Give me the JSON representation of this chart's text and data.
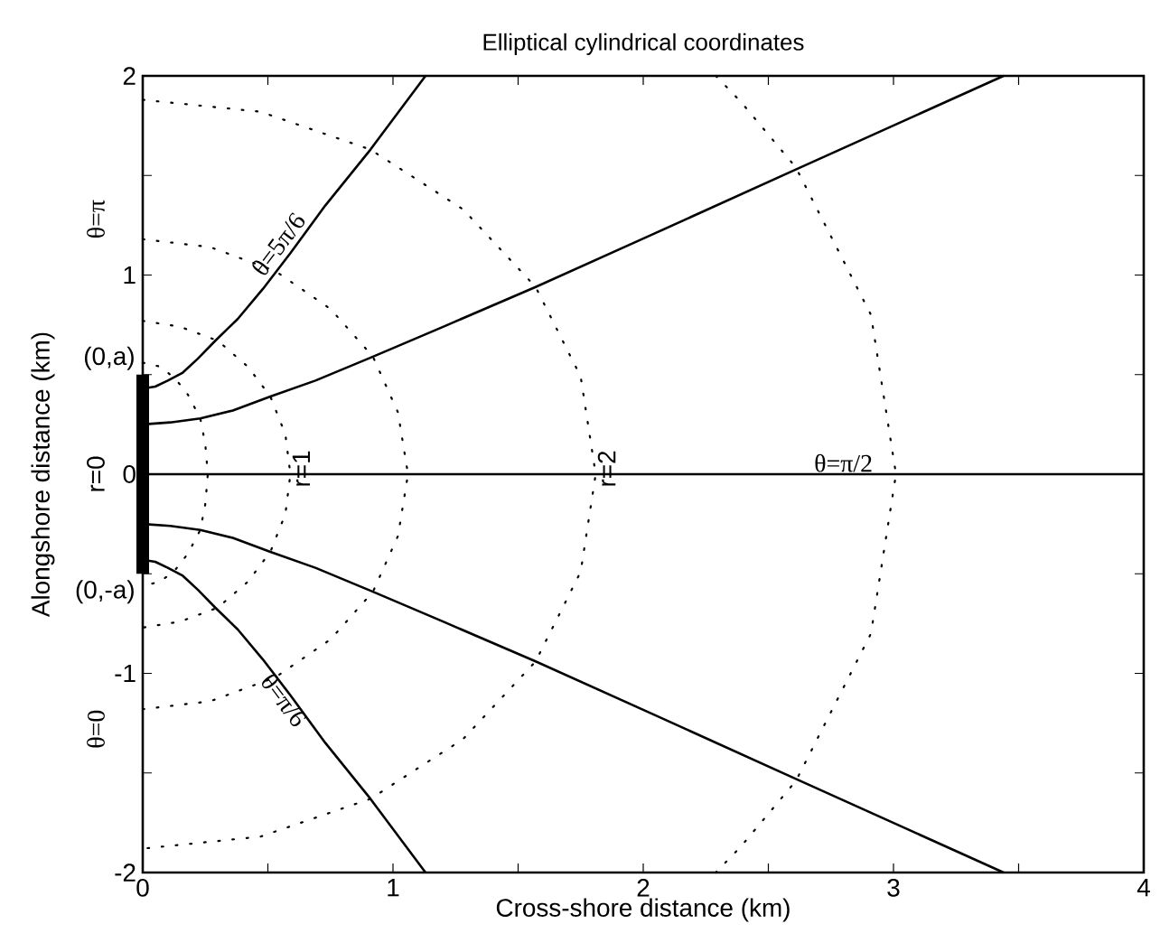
{
  "chart_data": {
    "type": "line",
    "title": "Elliptical cylindrical coordinates",
    "xlabel": "Cross-shore distance (km)",
    "ylabel": "Alongshore distance (km)",
    "xlim": [
      0,
      4
    ],
    "ylim": [
      -2,
      2
    ],
    "xticks": [
      0,
      {
        "value": 0.5,
        "label": null
      },
      1,
      {
        "value": 1.5,
        "label": null
      },
      2,
      {
        "value": 2.5,
        "label": null
      },
      3,
      {
        "value": 3.5,
        "label": null
      },
      4
    ],
    "yticks": [
      -2,
      {
        "value": -1.5,
        "label": null
      },
      -1,
      {
        "value": -0.5,
        "label": null
      },
      0,
      {
        "value": 0.5,
        "label": null
      },
      1,
      {
        "value": 1.5,
        "label": null
      },
      2
    ],
    "grid": false,
    "series": [
      {
        "color": "#000000",
        "line_style": "solid",
        "x": [
          0,
          0.05,
          0.1,
          0.16,
          0.22,
          0.29,
          0.38,
          0.48,
          0.59,
          0.73,
          0.91,
          1.13
        ],
        "values": [
          0.43,
          0.44,
          0.47,
          0.51,
          0.58,
          0.67,
          0.78,
          0.93,
          1.11,
          1.35,
          1.63,
          2.0
        ]
      },
      {
        "color": "#000000",
        "line_style": "solid",
        "x": [
          0,
          0.11,
          0.23,
          0.36,
          0.51,
          0.69,
          0.92,
          1.2,
          1.57,
          2.03,
          2.61,
          3.44
        ],
        "values": [
          0.25,
          0.26,
          0.28,
          0.32,
          0.39,
          0.47,
          0.59,
          0.74,
          0.94,
          1.2,
          1.53,
          2.0
        ]
      },
      {
        "color": "#000000",
        "line_style": "solid",
        "x": [
          0,
          4
        ],
        "values": [
          0,
          0
        ]
      },
      {
        "color": "#000000",
        "line_style": "solid",
        "x": [
          0,
          0.11,
          0.23,
          0.36,
          0.51,
          0.69,
          0.92,
          1.2,
          1.57,
          2.03,
          2.61,
          3.44
        ],
        "values": [
          -0.25,
          -0.26,
          -0.28,
          -0.32,
          -0.39,
          -0.47,
          -0.59,
          -0.74,
          -0.94,
          -1.2,
          -1.53,
          -2.0
        ]
      },
      {
        "color": "#000000",
        "line_style": "solid",
        "x": [
          0,
          0.05,
          0.1,
          0.16,
          0.22,
          0.29,
          0.38,
          0.48,
          0.59,
          0.73,
          0.91,
          1.13
        ],
        "values": [
          -0.43,
          -0.44,
          -0.47,
          -0.51,
          -0.58,
          -0.67,
          -0.78,
          -0.93,
          -1.11,
          -1.35,
          -1.63,
          -2.0
        ]
      },
      {
        "color": "#000000",
        "line_style": "dotted",
        "x": [
          0,
          0.07,
          0.13,
          0.18,
          0.23,
          0.25,
          0.26,
          0.25,
          0.23,
          0.18,
          0.13,
          0.07,
          0
        ],
        "values": [
          0.56,
          0.54,
          0.48,
          0.4,
          0.28,
          0.15,
          0,
          -0.15,
          -0.28,
          -0.4,
          -0.48,
          -0.54,
          -0.56
        ]
      },
      {
        "color": "#000000",
        "line_style": "dotted",
        "x": [
          0,
          0.15,
          0.3,
          0.42,
          0.51,
          0.57,
          0.59,
          0.57,
          0.51,
          0.42,
          0.3,
          0.15,
          0
        ],
        "values": [
          0.77,
          0.74,
          0.67,
          0.54,
          0.39,
          0.2,
          0,
          -0.2,
          -0.39,
          -0.54,
          -0.67,
          -0.74,
          -0.77
        ]
      },
      {
        "color": "#000000",
        "line_style": "dotted",
        "x": [
          0,
          0.27,
          0.53,
          0.75,
          0.92,
          1.02,
          1.06,
          1.02,
          0.92,
          0.75,
          0.53,
          0.27,
          0
        ],
        "values": [
          1.18,
          1.14,
          1.02,
          0.83,
          0.59,
          0.31,
          0,
          -0.31,
          -0.59,
          -0.83,
          -1.02,
          -1.14,
          -1.18
        ]
      },
      {
        "color": "#000000",
        "line_style": "dotted",
        "x": [
          0,
          0.47,
          0.91,
          1.28,
          1.57,
          1.75,
          1.81,
          1.75,
          1.57,
          1.28,
          0.91,
          0.47,
          0
        ],
        "values": [
          1.88,
          1.82,
          1.63,
          1.33,
          0.94,
          0.49,
          0,
          -0.49,
          -0.94,
          -1.33,
          -1.63,
          -1.82,
          -1.88
        ]
      },
      {
        "color": "#000000",
        "line_style": "dotted",
        "x": [
          2.29,
          2.39,
          2.61,
          2.91,
          3.01,
          2.91,
          2.61,
          2.39,
          2.29
        ],
        "values": [
          2.0,
          1.87,
          1.54,
          0.8,
          0,
          -0.8,
          -1.54,
          -1.87,
          -2.0
        ]
      },
      {
        "type": "bar",
        "color": "#000000",
        "x": [
          0
        ],
        "base": [
          -0.5
        ],
        "values": [
          1.0
        ]
      }
    ],
    "annotations": [
      "θ=π",
      {
        "text": "(0,a)",
        "x": 0,
        "y": 0.5
      },
      "r=0",
      {
        "text": "(0,-a)",
        "x": 0,
        "y": -0.5
      },
      "θ=0",
      {
        "text": "θ=5π/6",
        "x": 0.6,
        "y": 1.1
      },
      {
        "text": "θ=π/6",
        "x": 0.6,
        "y": -1.1
      },
      {
        "text": "r=1",
        "x": 0.59,
        "y": 0
      },
      {
        "text": "r=2",
        "x": 1.81,
        "y": 0
      },
      {
        "text": "θ=π/2",
        "x": 2.8,
        "y": 0
      }
    ]
  }
}
